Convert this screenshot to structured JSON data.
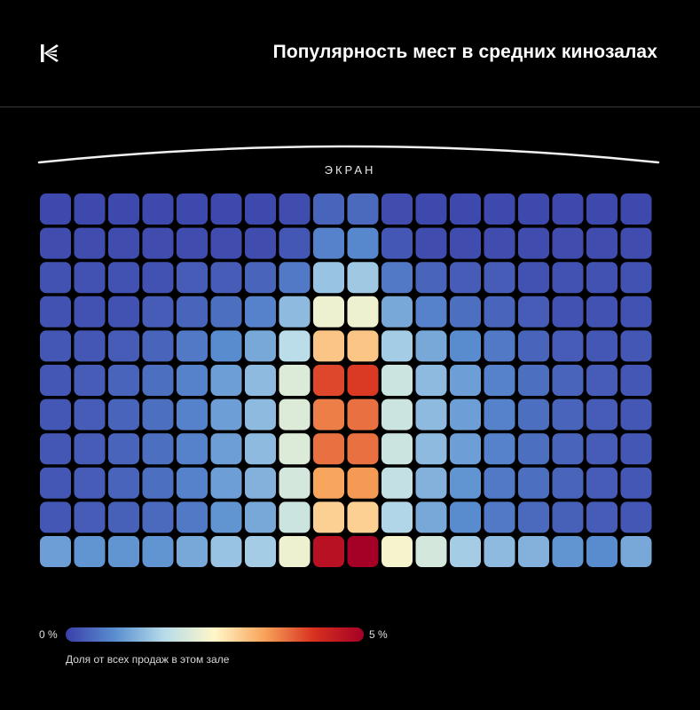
{
  "header": {
    "title": "Популярность мест в средних кинозалах",
    "logo_icon": "k-logo-icon"
  },
  "screen": {
    "label": "ЭКРАН"
  },
  "legend": {
    "min_label": "0 %",
    "max_label": "5 %",
    "caption": "Доля от всех продаж в этом зале",
    "gradient": [
      "#3a3fa8",
      "#5a8fd0",
      "#b7dcea",
      "#fff7c8",
      "#f8a35a",
      "#d7301f",
      "#a50026"
    ]
  },
  "chart_data": {
    "type": "heatmap",
    "title": "Популярность мест в средних кинозалах",
    "value_unit": "%",
    "value_range": [
      0,
      5
    ],
    "rows": 11,
    "cols": 18,
    "values": [
      [
        0.1,
        0.1,
        0.1,
        0.1,
        0.1,
        0.1,
        0.1,
        0.15,
        0.4,
        0.45,
        0.15,
        0.1,
        0.1,
        0.1,
        0.1,
        0.1,
        0.1,
        0.1
      ],
      [
        0.15,
        0.15,
        0.15,
        0.15,
        0.15,
        0.15,
        0.15,
        0.25,
        0.7,
        0.75,
        0.25,
        0.15,
        0.15,
        0.15,
        0.15,
        0.15,
        0.15,
        0.15
      ],
      [
        0.2,
        0.2,
        0.2,
        0.2,
        0.3,
        0.3,
        0.4,
        0.6,
        1.4,
        1.45,
        0.6,
        0.4,
        0.3,
        0.3,
        0.2,
        0.2,
        0.2,
        0.2
      ],
      [
        0.2,
        0.2,
        0.2,
        0.3,
        0.4,
        0.5,
        0.7,
        1.3,
        2.3,
        2.3,
        1.1,
        0.7,
        0.5,
        0.4,
        0.3,
        0.2,
        0.2,
        0.2
      ],
      [
        0.25,
        0.25,
        0.3,
        0.4,
        0.6,
        0.8,
        1.1,
        1.7,
        3.0,
        3.0,
        1.5,
        1.1,
        0.8,
        0.6,
        0.4,
        0.3,
        0.25,
        0.25
      ],
      [
        0.25,
        0.3,
        0.4,
        0.5,
        0.7,
        1.0,
        1.3,
        2.1,
        4.0,
        4.1,
        1.9,
        1.3,
        1.0,
        0.7,
        0.5,
        0.4,
        0.3,
        0.25
      ],
      [
        0.25,
        0.3,
        0.4,
        0.5,
        0.7,
        1.0,
        1.3,
        2.1,
        3.6,
        3.7,
        1.9,
        1.3,
        1.0,
        0.7,
        0.5,
        0.4,
        0.3,
        0.25
      ],
      [
        0.25,
        0.3,
        0.4,
        0.5,
        0.7,
        1.0,
        1.3,
        2.1,
        3.7,
        3.7,
        1.9,
        1.3,
        1.0,
        0.7,
        0.5,
        0.4,
        0.3,
        0.25
      ],
      [
        0.25,
        0.3,
        0.4,
        0.5,
        0.7,
        1.0,
        1.2,
        2.0,
        3.3,
        3.4,
        1.8,
        1.2,
        0.9,
        0.6,
        0.5,
        0.4,
        0.3,
        0.25
      ],
      [
        0.25,
        0.3,
        0.35,
        0.45,
        0.6,
        0.9,
        1.1,
        1.9,
        2.9,
        2.9,
        1.6,
        1.1,
        0.8,
        0.6,
        0.45,
        0.35,
        0.3,
        0.25
      ],
      [
        1.0,
        0.9,
        0.9,
        0.9,
        1.1,
        1.4,
        1.5,
        2.3,
        4.7,
        5.0,
        2.4,
        2.0,
        1.5,
        1.3,
        1.2,
        0.9,
        0.8,
        1.1
      ]
    ]
  }
}
